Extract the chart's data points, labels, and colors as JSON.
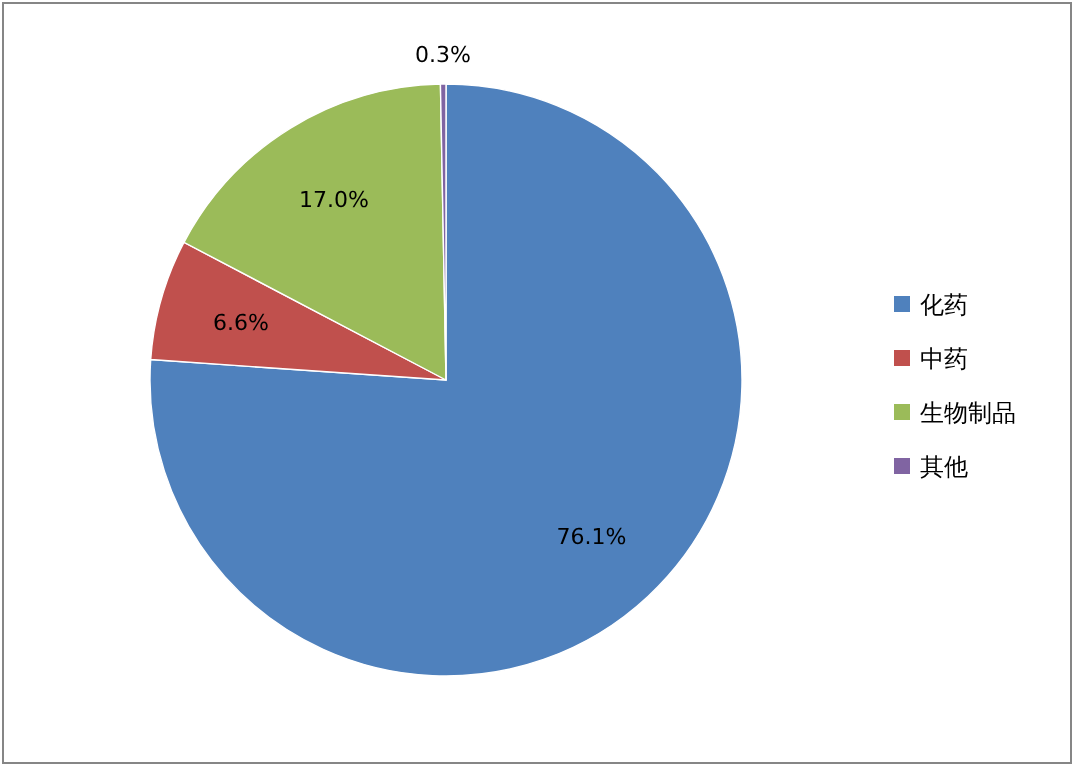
{
  "chart_data": {
    "type": "pie",
    "categories": [
      "化药",
      "中药",
      "生物制品",
      "其他"
    ],
    "values": [
      76.1,
      6.6,
      17.0,
      0.3
    ],
    "colors": [
      "#4f81bd",
      "#c0504d",
      "#9bbb59",
      "#8064a2"
    ],
    "value_labels": [
      "76.1%",
      "6.6%",
      "17.0%",
      "0.3%"
    ],
    "legend": "right"
  }
}
